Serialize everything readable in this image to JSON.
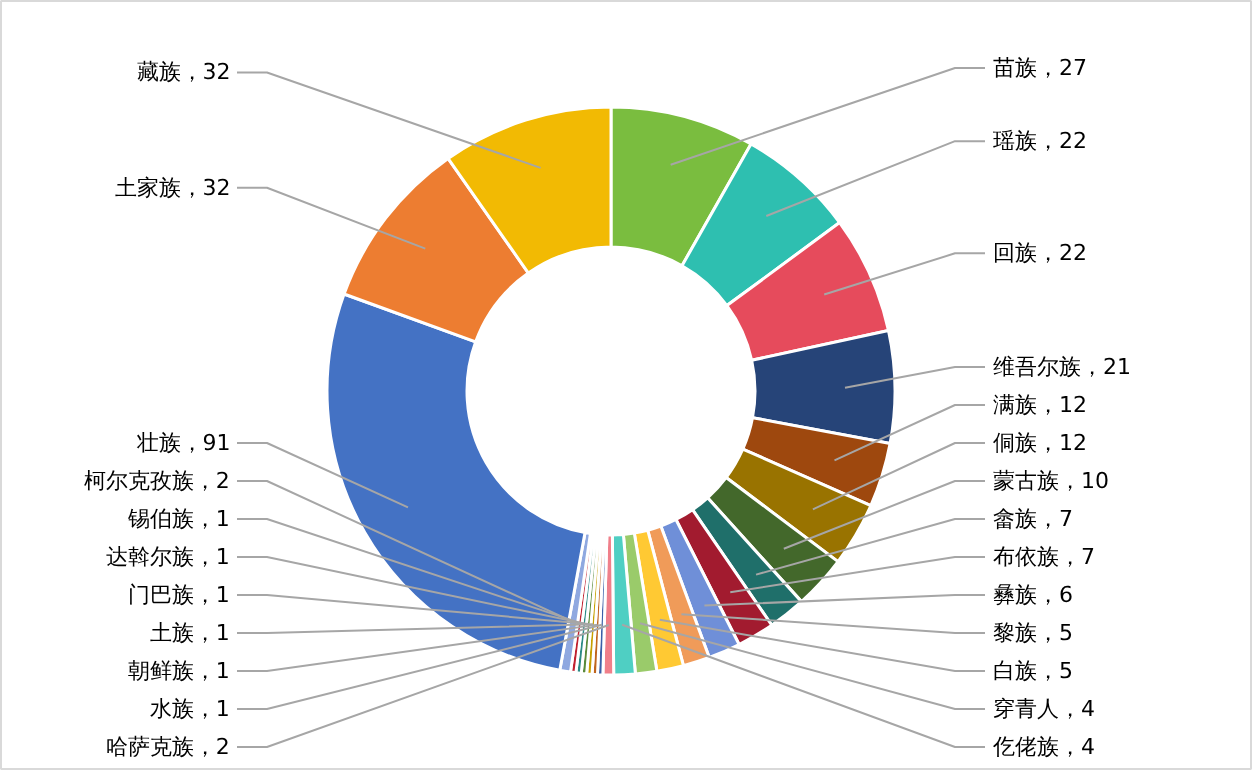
{
  "chart_data": {
    "type": "donut",
    "categories": [
      "苗族",
      "瑶族",
      "回族",
      "维吾尔族",
      "满族",
      "侗族",
      "蒙古族",
      "畲族",
      "布依族",
      "彝族",
      "黎族",
      "白族",
      "穿青人",
      "仡佬族",
      "哈萨克族",
      "水族",
      "朝鲜族",
      "土族",
      "门巴族",
      "达斡尔族",
      "锡伯族",
      "柯尔克孜族",
      "壮族",
      "土家族",
      "藏族"
    ],
    "values": [
      27,
      22,
      22,
      21,
      12,
      12,
      10,
      7,
      7,
      6,
      5,
      5,
      4,
      4,
      2,
      1,
      1,
      1,
      1,
      1,
      1,
      2,
      91,
      32,
      32
    ],
    "colors": [
      "#7abd3f",
      "#2ebfb0",
      "#e64b5c",
      "#264478",
      "#9e480e",
      "#997300",
      "#43682b",
      "#1f6f6a",
      "#a21b2f",
      "#6f8fd8",
      "#f09b59",
      "#ffc933",
      "#9acb6a",
      "#4fcfc3",
      "#f07f8a",
      "#3a5fa8",
      "#c0651e",
      "#c7a000",
      "#5a8a3a",
      "#2b8a85",
      "#c0202f",
      "#8fa8e0",
      "#4472c4",
      "#ed7d31",
      "#f2ba03"
    ],
    "value_labels": [
      "，27",
      "，22",
      "，22",
      "，21",
      "，12",
      "，12",
      "，10",
      "，7",
      "，7",
      "，6",
      "，5",
      "，5",
      "，4",
      "，4",
      "，2",
      "，1",
      "，1",
      "，1",
      "，1",
      "，1",
      "，1",
      "，2",
      "，91",
      "，32",
      "，32"
    ]
  }
}
